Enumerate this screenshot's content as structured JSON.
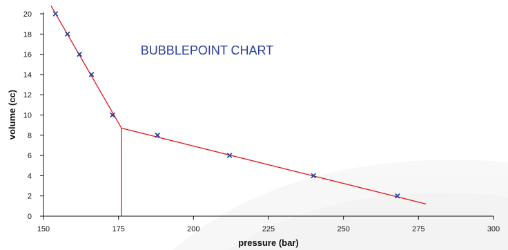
{
  "chart_data": {
    "type": "scatter",
    "title": "BUBBLEPOINT CHART",
    "xlabel": "pressure (bar)",
    "ylabel": "volume (cc)",
    "xlim": [
      150,
      300
    ],
    "ylim": [
      0,
      20
    ],
    "x_ticks": [
      150,
      175,
      200,
      225,
      250,
      275,
      300
    ],
    "y_ticks": [
      0,
      2,
      4,
      6,
      8,
      10,
      12,
      14,
      16,
      18,
      20
    ],
    "grid": false,
    "series": [
      {
        "marker": "x",
        "color": "#2a3f9d",
        "points": [
          {
            "x": 154,
            "y": 20
          },
          {
            "x": 158,
            "y": 18
          },
          {
            "x": 162,
            "y": 16
          },
          {
            "x": 166,
            "y": 14
          },
          {
            "x": 173,
            "y": 10
          },
          {
            "x": 188,
            "y": 8
          },
          {
            "x": 212,
            "y": 6
          },
          {
            "x": 240,
            "y": 4
          },
          {
            "x": 268,
            "y": 2
          }
        ]
      }
    ],
    "trend_lines": [
      {
        "color": "#e0141e",
        "points": [
          {
            "x": 152.5,
            "y": 20.8
          },
          {
            "x": 176,
            "y": 8.7
          }
        ]
      },
      {
        "color": "#e0141e",
        "points": [
          {
            "x": 176,
            "y": 8.7
          },
          {
            "x": 277.5,
            "y": 1.2
          }
        ]
      },
      {
        "color": "#e0141e",
        "points": [
          {
            "x": 176,
            "y": 8.7
          },
          {
            "x": 176,
            "y": 0
          }
        ]
      }
    ],
    "bubble_point": {
      "x": 176,
      "y": 8.7
    }
  }
}
